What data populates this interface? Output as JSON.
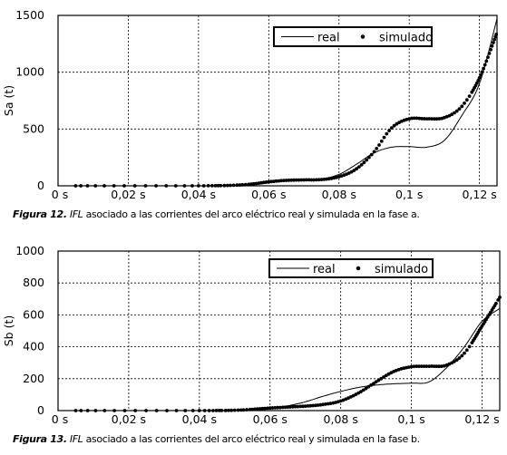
{
  "chart_data": [
    {
      "type": "line",
      "ylabel": "Sa (t)",
      "xlabel": "",
      "xlim": [
        0,
        0.125
      ],
      "ylim": [
        0,
        1500
      ],
      "x_ticks": [
        "0 s",
        "0,02 s",
        "0,04 s",
        "0,06 s",
        "0,08 s",
        "0,1 s",
        "0,12 s"
      ],
      "y_ticks": [
        "0",
        "500",
        "1000",
        "1500"
      ],
      "grid": true,
      "legend_position": "top-right",
      "series": [
        {
          "name": "real",
          "style": "line",
          "x": [
            0.005,
            0.04,
            0.05,
            0.055,
            0.06,
            0.065,
            0.07,
            0.075,
            0.08,
            0.085,
            0.09,
            0.095,
            0.1,
            0.105,
            0.11,
            0.115,
            0.12,
            0.125
          ],
          "y": [
            0,
            0,
            2,
            8,
            25,
            42,
            45,
            60,
            100,
            190,
            290,
            340,
            345,
            340,
            400,
            620,
            900,
            1470
          ]
        },
        {
          "name": "simulado",
          "style": "dots",
          "x": [
            0.005,
            0.04,
            0.05,
            0.055,
            0.06,
            0.065,
            0.07,
            0.075,
            0.08,
            0.085,
            0.09,
            0.095,
            0.1,
            0.105,
            0.11,
            0.115,
            0.12,
            0.125
          ],
          "y": [
            0,
            0,
            5,
            15,
            35,
            48,
            52,
            55,
            80,
            150,
            300,
            510,
            590,
            590,
            600,
            700,
            950,
            1350
          ]
        }
      ]
    },
    {
      "type": "line",
      "ylabel": "Sb (t)",
      "xlabel": "",
      "xlim": [
        0,
        0.125
      ],
      "ylim": [
        0,
        1000
      ],
      "x_ticks": [
        "0 s",
        "0,02 s",
        "0,04 s",
        "0,06 s",
        "0,08 s",
        "0,1 s",
        "0,12 s"
      ],
      "y_ticks": [
        "0",
        "200",
        "400",
        "600",
        "800",
        "1000"
      ],
      "grid": true,
      "legend_position": "top-right",
      "series": [
        {
          "name": "real",
          "style": "line",
          "x": [
            0.005,
            0.04,
            0.05,
            0.055,
            0.06,
            0.065,
            0.07,
            0.075,
            0.08,
            0.085,
            0.09,
            0.095,
            0.1,
            0.105,
            0.11,
            0.115,
            0.12,
            0.125
          ],
          "y": [
            0,
            0,
            2,
            6,
            15,
            30,
            55,
            90,
            120,
            145,
            160,
            168,
            172,
            180,
            270,
            400,
            560,
            640
          ]
        },
        {
          "name": "simulado",
          "style": "dots",
          "x": [
            0.005,
            0.04,
            0.05,
            0.055,
            0.06,
            0.065,
            0.07,
            0.075,
            0.08,
            0.085,
            0.09,
            0.095,
            0.1,
            0.105,
            0.11,
            0.115,
            0.12,
            0.125
          ],
          "y": [
            0,
            0,
            2,
            8,
            16,
            22,
            28,
            38,
            60,
            110,
            180,
            245,
            275,
            278,
            285,
            360,
            530,
            710
          ]
        }
      ]
    }
  ],
  "captions": [
    {
      "label": "Figura 12.",
      "abbr": "IFL",
      "text": " asociado a las corrientes del arco eléctrico real y simulada en la fase a."
    },
    {
      "label": "Figura 13.",
      "abbr": "IFL",
      "text": " asociado a las corrientes del arco eléctrico real y simulada en la fase b."
    }
  ],
  "colors": {
    "line": "#000000",
    "grid": "#000000",
    "background": "#ffffff"
  }
}
